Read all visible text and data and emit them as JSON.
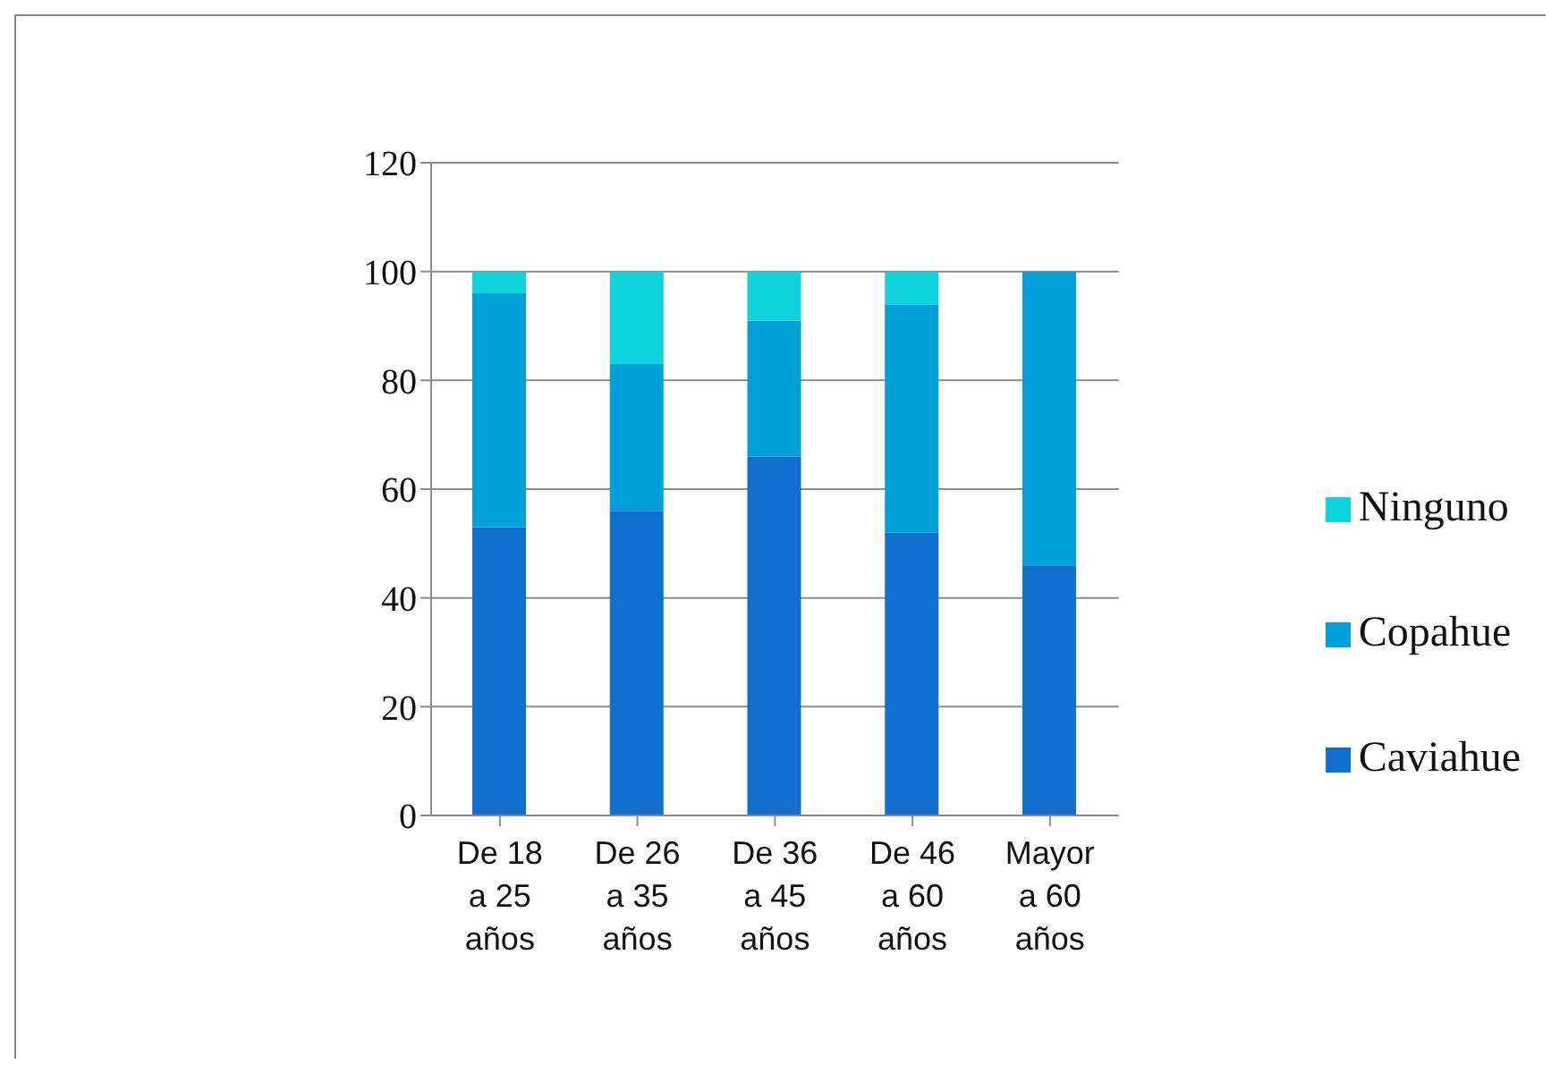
{
  "chart_data": {
    "type": "bar",
    "stacked": true,
    "categories": [
      "De 18 a 25 años",
      "De 26 a 35 años",
      "De 36 a 45 años",
      "De 46 a 60 años",
      "Mayor a 60 años"
    ],
    "series": [
      {
        "name": "Caviahue",
        "color": "#1170cd",
        "values": [
          53,
          56,
          66,
          52,
          46
        ]
      },
      {
        "name": "Copahue",
        "color": "#01a0db",
        "values": [
          43,
          27,
          25,
          42,
          54
        ]
      },
      {
        "name": "Ninguno",
        "color": "#0fd3dd",
        "values": [
          4,
          17,
          9,
          6,
          0
        ]
      }
    ],
    "ylim": [
      0,
      120
    ],
    "yticks": [
      0,
      20,
      40,
      60,
      80,
      100,
      120
    ],
    "grid": "y",
    "legend": "right"
  }
}
